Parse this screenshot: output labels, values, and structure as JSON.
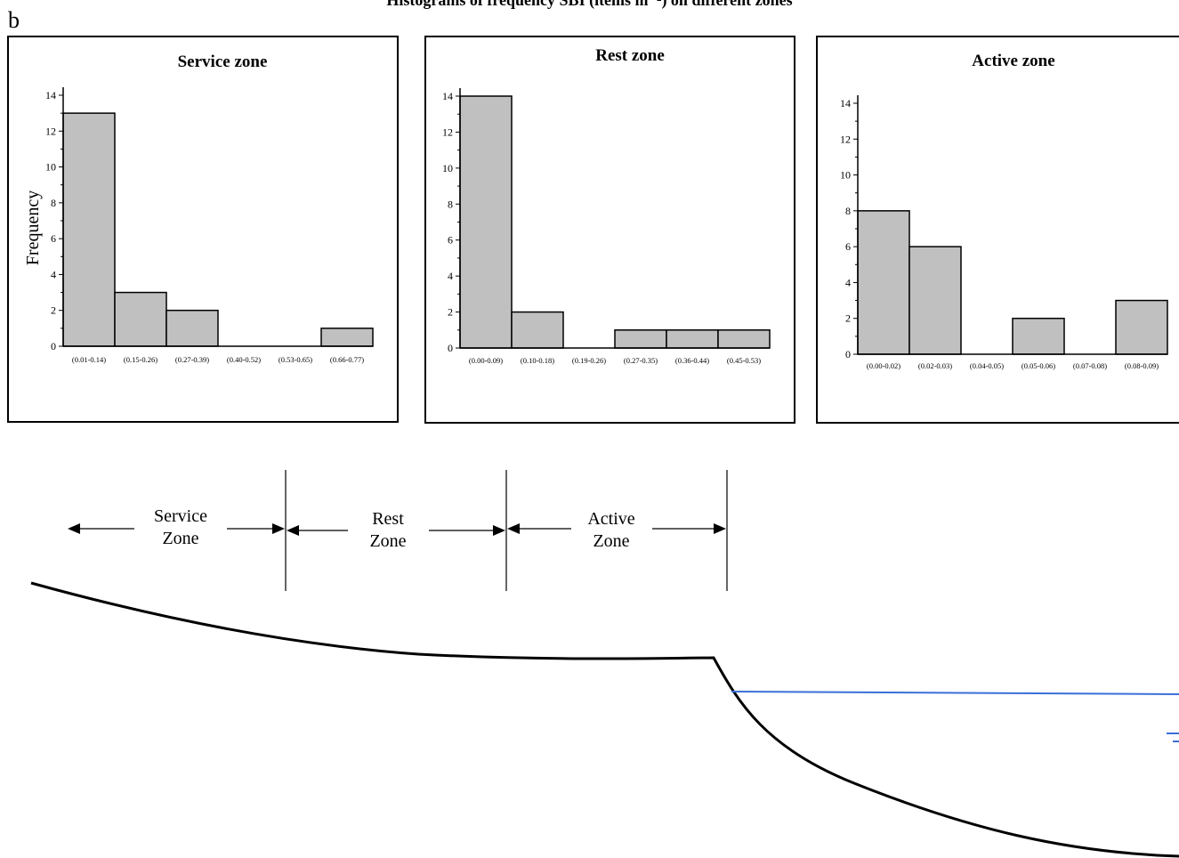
{
  "figure": {
    "title": "Histograms of frequency SBI (items m⁻²) on different zones",
    "panel_letter": "b"
  },
  "chart_data": [
    {
      "type": "bar",
      "title": "Service zone",
      "ylabel": "Frequency",
      "xlabel": "",
      "categories": [
        "(0.01-0.14)",
        "(0.15-0.26)",
        "(0.27-0.39)",
        "(0.40-0.52)",
        "(0.53-0.65)",
        "(0.66-0.77)"
      ],
      "values": [
        13,
        3,
        2,
        0,
        0,
        1
      ],
      "ylim": [
        0,
        14
      ],
      "yticks": [
        0,
        2,
        4,
        6,
        8,
        10,
        12,
        14
      ],
      "grid": false,
      "bar_color": "#c0c0c0"
    },
    {
      "type": "bar",
      "title": "Rest zone",
      "ylabel": "",
      "xlabel": "",
      "categories": [
        "(0.00-0.09)",
        "(0.10-0.18)",
        "(0.19-0.26)",
        "(0.27-0.35)",
        "(0.36-0.44)",
        "(0.45-0.53)"
      ],
      "values": [
        14,
        2,
        0,
        1,
        1,
        1
      ],
      "ylim": [
        0,
        14
      ],
      "yticks": [
        0,
        2,
        4,
        6,
        8,
        10,
        12,
        14
      ],
      "grid": false,
      "bar_color": "#c0c0c0"
    },
    {
      "type": "bar",
      "title": "Active zone",
      "ylabel": "",
      "xlabel": "",
      "categories": [
        "(0.00-0.02)",
        "(0.02-0.03)",
        "(0.04-0.05)",
        "(0.05-0.06)",
        "(0.07-0.08)",
        "(0.08-0.09)"
      ],
      "values": [
        8,
        6,
        0,
        2,
        0,
        3
      ],
      "ylim": [
        0,
        14
      ],
      "yticks": [
        0,
        2,
        4,
        6,
        8,
        10,
        12,
        14
      ],
      "grid": false,
      "bar_color": "#c0c0c0"
    }
  ],
  "diagram": {
    "zones": [
      {
        "line1": "Service",
        "line2": "Zone"
      },
      {
        "line1": "Rest",
        "line2": "Zone"
      },
      {
        "line1": "Active",
        "line2": "Zone"
      }
    ],
    "water_color": "#3a6fd8",
    "profile_color": "#000000"
  }
}
